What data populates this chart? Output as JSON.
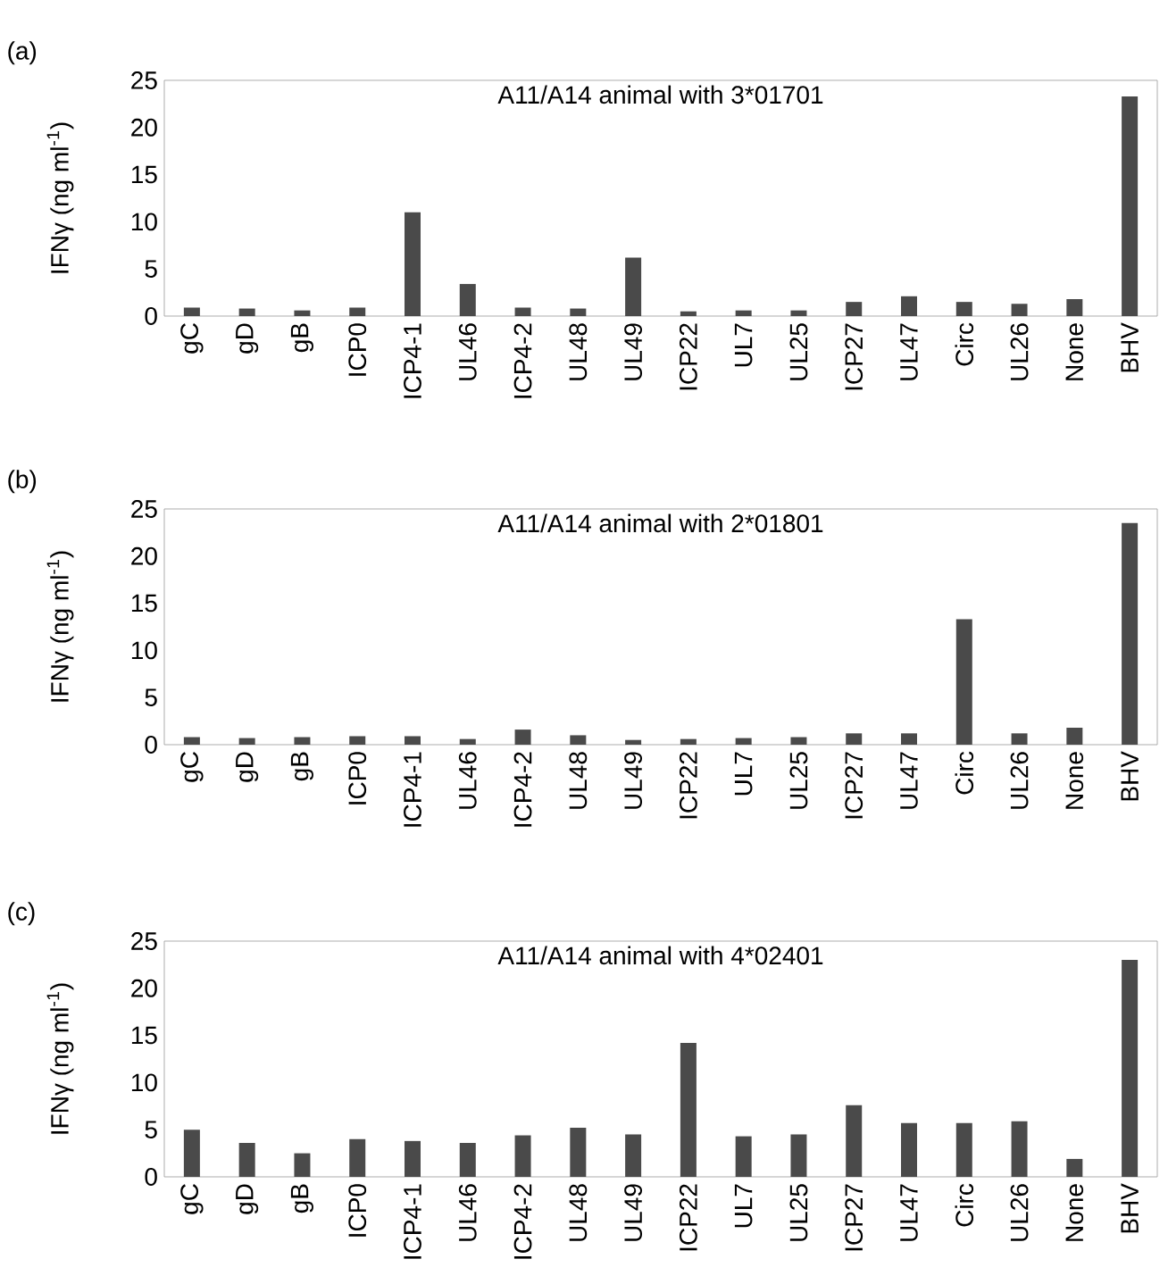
{
  "chart_data": [
    {
      "type": "bar",
      "title": "A11/A14 animal with 3*01701",
      "ylabel": "IFNγ (ng ml$^{-1}$)",
      "annotations": [
        "(a)"
      ],
      "categories": [
        "gC",
        "gD",
        "gB",
        "ICP0",
        "ICP4-1",
        "UL46",
        "ICP4-2",
        "UL48",
        "UL49",
        "ICP22",
        "UL7",
        "UL25",
        "ICP27",
        "UL47",
        "Circ",
        "UL26",
        "None",
        "BHV"
      ],
      "values": [
        0.9,
        0.8,
        0.6,
        0.9,
        11,
        3.4,
        0.9,
        0.8,
        6.2,
        0.5,
        0.6,
        0.6,
        1.5,
        2.1,
        1.5,
        1.3,
        1.8,
        23.3
      ],
      "color": "#4a4a4a",
      "ylim": [
        0,
        25
      ],
      "yticks": [
        0,
        5,
        10,
        15,
        20,
        25
      ]
    },
    {
      "type": "bar",
      "title": "A11/A14 animal with 2*01801",
      "ylabel": "IFNγ (ng ml$^{-1}$)",
      "annotations": [
        "(b)"
      ],
      "categories": [
        "gC",
        "gD",
        "gB",
        "ICP0",
        "ICP4-1",
        "UL46",
        "ICP4-2",
        "UL48",
        "UL49",
        "ICP22",
        "UL7",
        "UL25",
        "ICP27",
        "UL47",
        "Circ",
        "UL26",
        "None",
        "BHV"
      ],
      "values": [
        0.8,
        0.7,
        0.8,
        0.9,
        0.9,
        0.6,
        1.6,
        1.0,
        0.5,
        0.6,
        0.7,
        0.8,
        1.2,
        1.2,
        13.3,
        1.2,
        1.8,
        23.5
      ],
      "color": "#4a4a4a",
      "ylim": [
        0,
        25
      ],
      "yticks": [
        0,
        5,
        10,
        15,
        20,
        25
      ]
    },
    {
      "type": "bar",
      "title": "A11/A14 animal with 4*02401",
      "ylabel": "IFNγ (ng ml$^{-1}$)",
      "annotations": [
        "(c)"
      ],
      "categories": [
        "gC",
        "gD",
        "gB",
        "ICP0",
        "ICP4-1",
        "UL46",
        "ICP4-2",
        "UL48",
        "UL49",
        "ICP22",
        "UL7",
        "UL25",
        "ICP27",
        "UL47",
        "Circ",
        "UL26",
        "None",
        "BHV"
      ],
      "values": [
        5.0,
        3.6,
        2.5,
        4.0,
        3.8,
        3.6,
        4.4,
        5.2,
        4.5,
        14.2,
        4.3,
        4.5,
        7.6,
        5.7,
        5.7,
        5.9,
        1.9,
        23
      ],
      "color": "#4a4a4a",
      "ylim": [
        0,
        25
      ],
      "yticks": [
        0,
        5,
        10,
        15,
        20,
        25
      ]
    }
  ]
}
